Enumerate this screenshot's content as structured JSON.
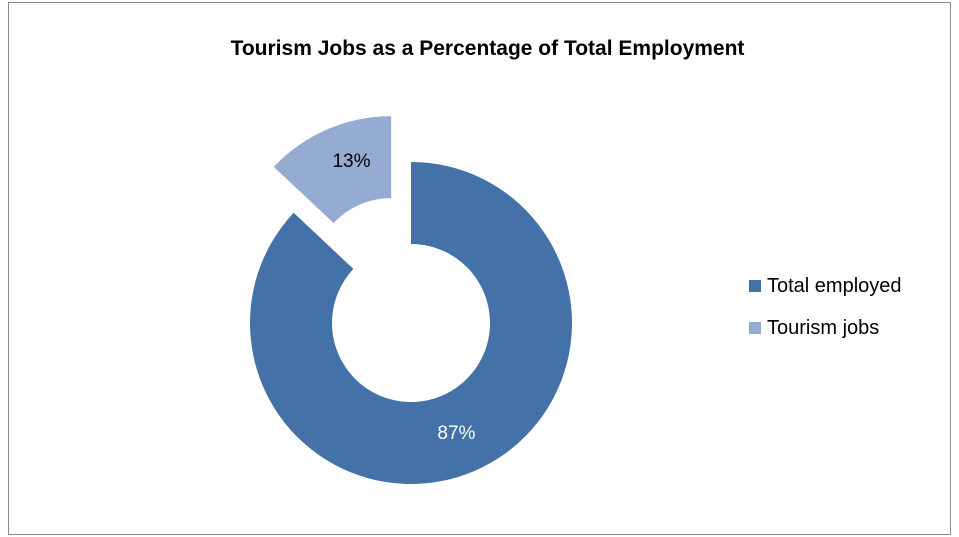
{
  "chart_data": {
    "type": "pie",
    "variant": "doughnut",
    "title": "Tourism Jobs as a Percentage of Total Employment",
    "categories": [
      "Total employed",
      "Tourism jobs"
    ],
    "values": [
      87,
      13
    ],
    "data_labels": [
      "87%",
      "13%"
    ],
    "colors": [
      "#4472a8",
      "#95abd1"
    ],
    "label_colors": [
      "#ffffff",
      "#000000"
    ],
    "exploded": [
      false,
      true
    ],
    "legend_position": "right"
  }
}
